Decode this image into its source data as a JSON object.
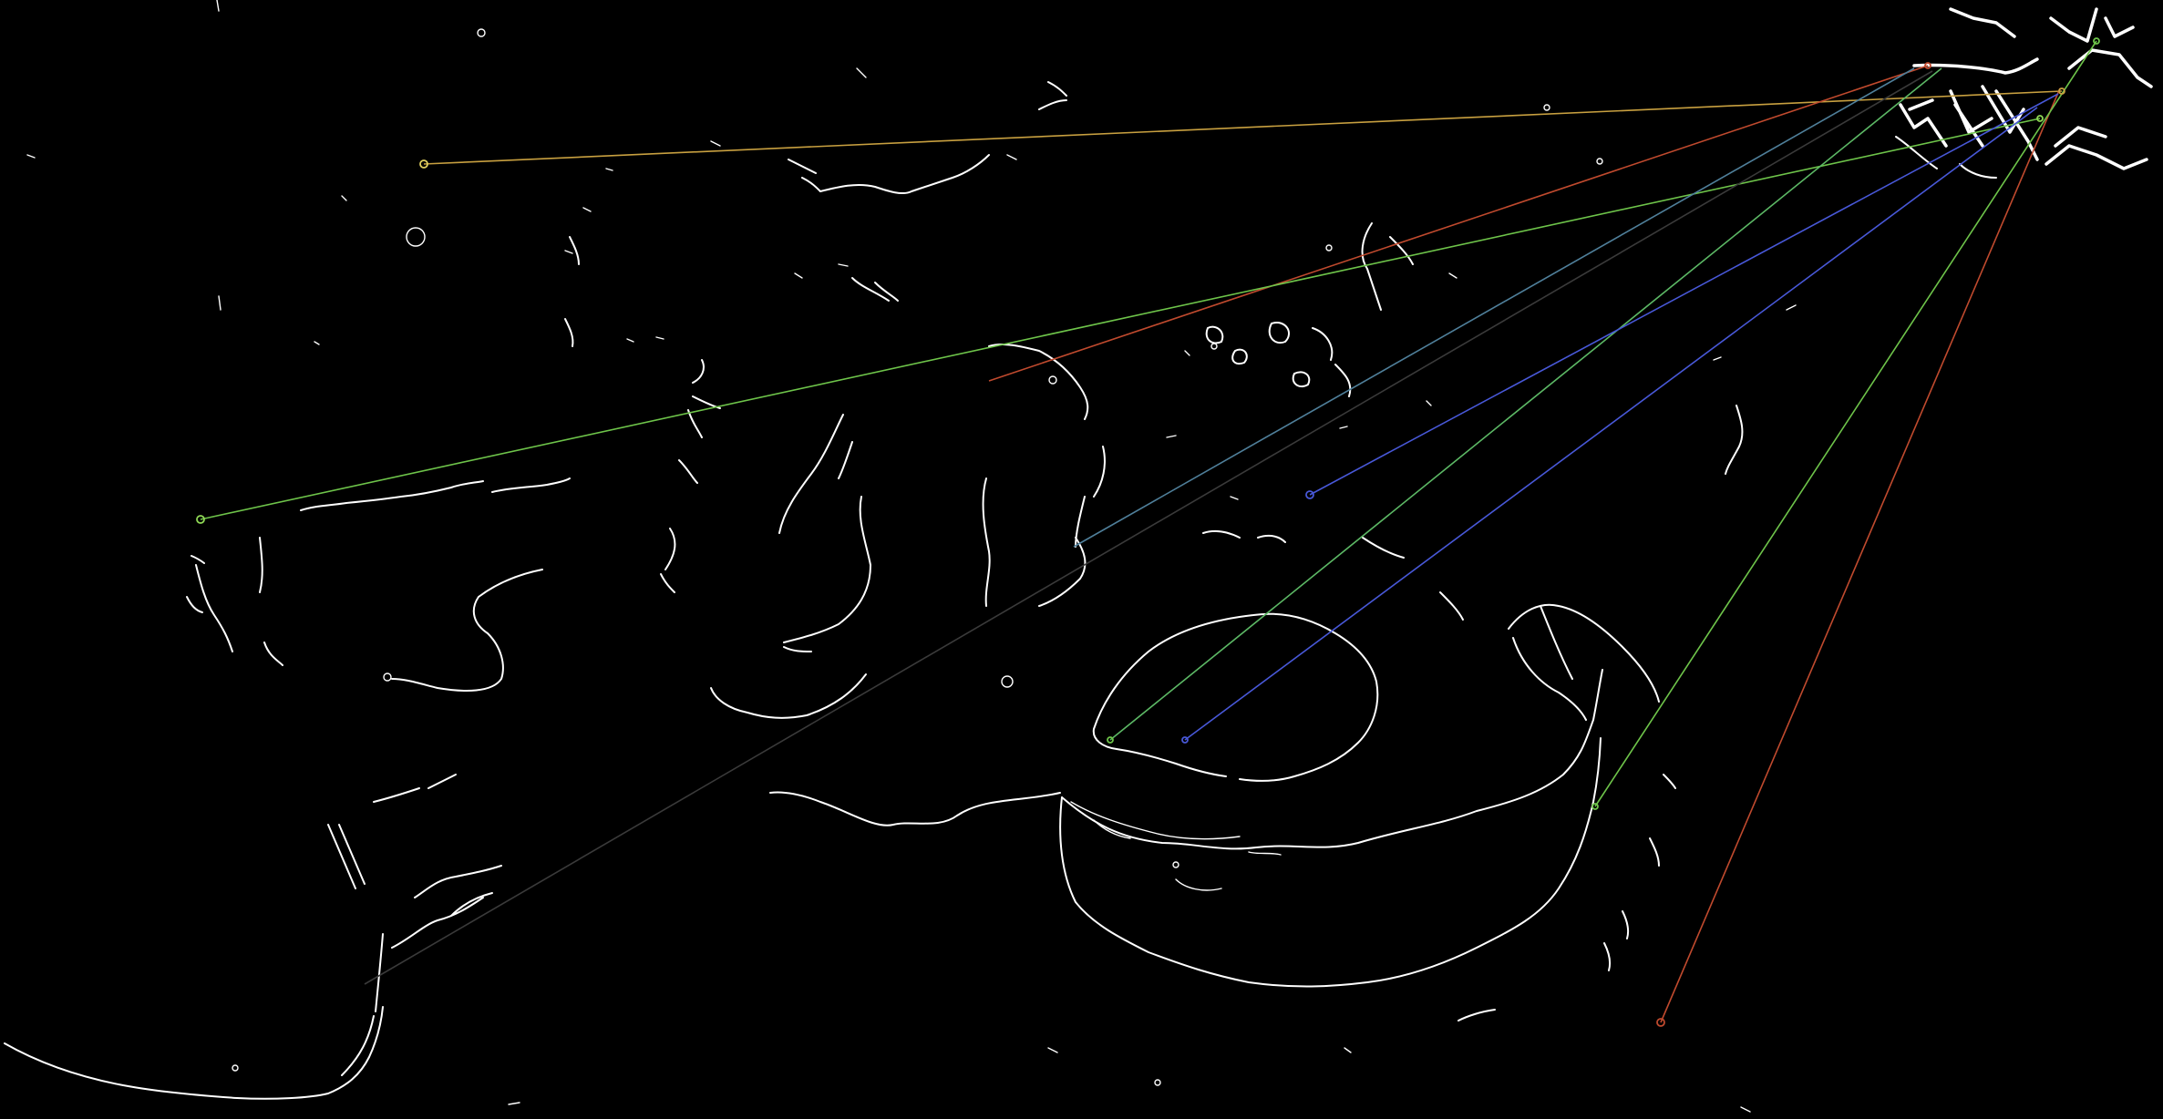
{
  "image": {
    "kind": "edge-map-feature-matches",
    "background_color": "#000000",
    "edge_color": "#ffffff"
  },
  "colors": {
    "orange": "#c8a040",
    "red": "#c04a2e",
    "green": "#6ec44a",
    "lime": "#8fd855",
    "blue": "#4858d8",
    "steel": "#4f7f9a",
    "gray": "#3a3a3a",
    "teal_green": "#5cb865"
  }
}
